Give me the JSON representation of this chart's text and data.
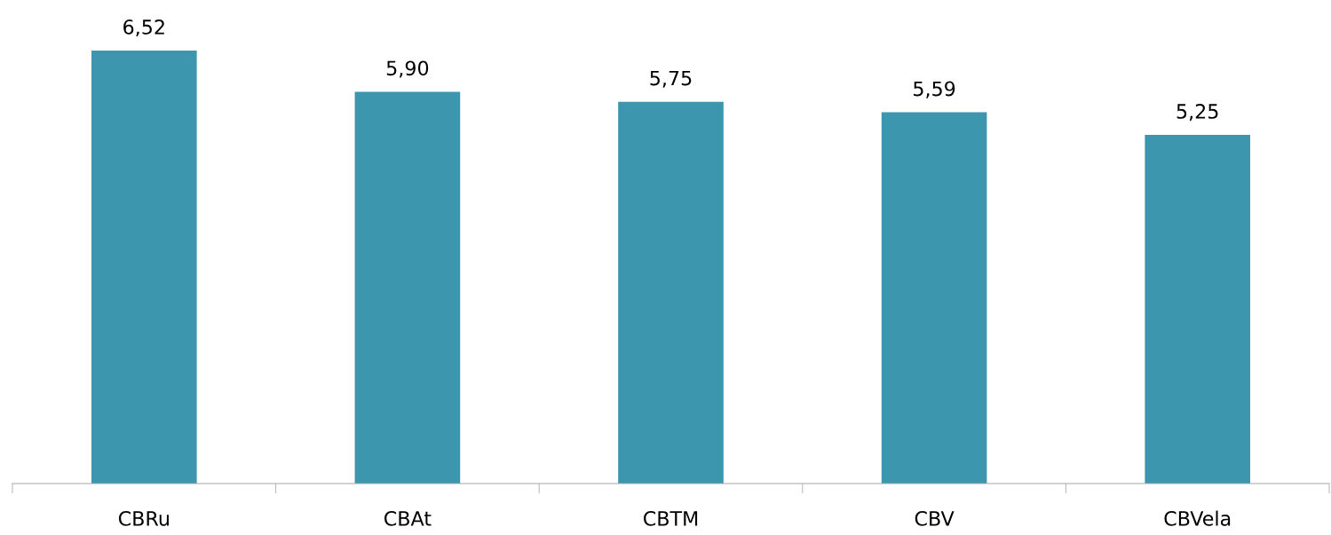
{
  "chart_data": {
    "type": "bar",
    "categories": [
      "CBRu",
      "CBAt",
      "CBTM",
      "CBV",
      "CBVela"
    ],
    "values": [
      6.52,
      5.9,
      5.75,
      5.59,
      5.25
    ],
    "value_labels": [
      "6,52",
      "5,90",
      "5,75",
      "5,59",
      "5,25"
    ],
    "color": "#3c96ad",
    "grid": false,
    "legend": false
  }
}
